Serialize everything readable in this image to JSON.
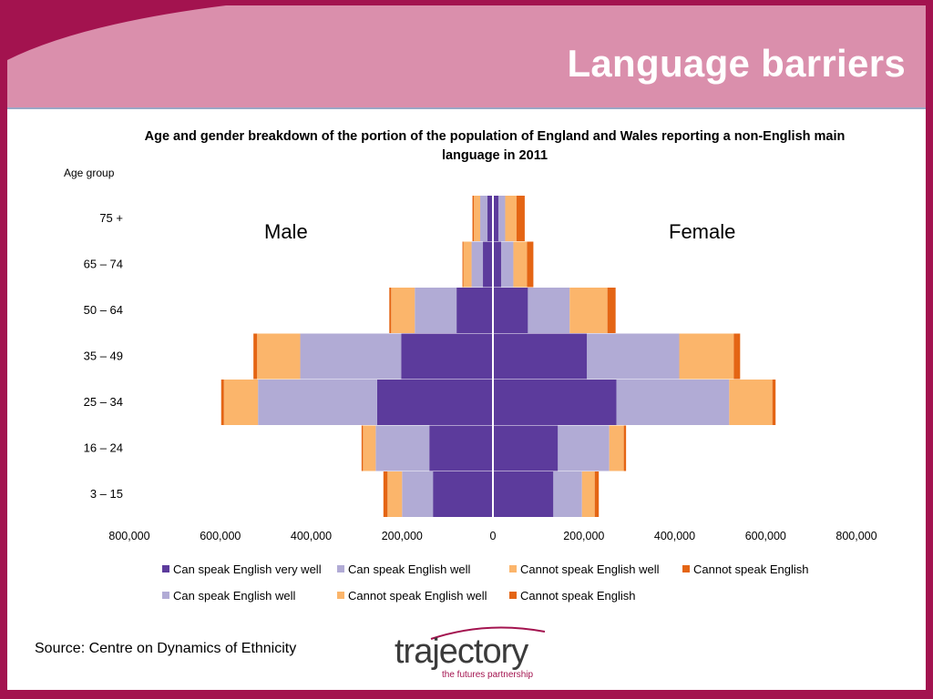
{
  "slide": {
    "title": "Language barriers",
    "source": "Source: Centre on Dynamics of Ethnicity"
  },
  "logo": {
    "word": "trajectory",
    "tagline": "the futures partnership"
  },
  "labels": {
    "male": "Male",
    "female": "Female"
  },
  "colors": {
    "background": "#a3134f",
    "header": "#da8fac",
    "very_well": "#5c3b9c",
    "well": "#b1abd5",
    "not_well": "#fbb56b",
    "not_at_all": "#e46514"
  },
  "chart_data": {
    "type": "bar",
    "orientation": "horizontal",
    "subtype": "population-pyramid",
    "title": "Age and gender breakdown of the portion of the population of England and Wales reporting a non-English main language in 2011",
    "ylabel": "Age group",
    "xlim": [
      -800000,
      800000
    ],
    "categories": [
      "3 – 15",
      "16 – 24",
      "25 – 34",
      "35 – 49",
      "50 – 64",
      "65 – 74",
      "75 +"
    ],
    "x_ticks": [
      -800000,
      -600000,
      -400000,
      -200000,
      0,
      200000,
      400000,
      600000,
      800000
    ],
    "x_tick_labels": [
      "800,000",
      "600,000",
      "400,000",
      "200,000",
      "0",
      "200,000",
      "400,000",
      "600,000",
      "800,000"
    ],
    "series": [
      {
        "name": "Can speak English very well",
        "side": "male",
        "color": "#5c3b9c",
        "values": [
          132000,
          140000,
          255000,
          202000,
          80000,
          22000,
          12000
        ]
      },
      {
        "name": "Can speak English well",
        "side": "male",
        "color": "#b1abd5",
        "values": [
          68000,
          118000,
          262000,
          222000,
          92000,
          25000,
          16000
        ]
      },
      {
        "name": "Cannot speak English well",
        "side": "male",
        "color": "#fbb56b",
        "values": [
          32000,
          28000,
          75000,
          95000,
          52000,
          18000,
          14000
        ]
      },
      {
        "name": "Cannot speak English",
        "side": "male",
        "color": "#e46514",
        "values": [
          9000,
          3000,
          6000,
          8000,
          4000,
          2000,
          3000
        ]
      },
      {
        "name": "Can speak English very well",
        "side": "female",
        "color": "#5c3b9c",
        "values": [
          133000,
          143000,
          272000,
          207000,
          77000,
          18000,
          12000
        ]
      },
      {
        "name": "Can speak English well",
        "side": "female",
        "color": "#b1abd5",
        "values": [
          63000,
          113000,
          248000,
          203000,
          92000,
          27000,
          15000
        ]
      },
      {
        "name": "Cannot speak English well",
        "side": "female",
        "color": "#fbb56b",
        "values": [
          28000,
          32000,
          95000,
          120000,
          83000,
          30000,
          25000
        ]
      },
      {
        "name": "Cannot speak English",
        "side": "female",
        "color": "#e46514",
        "values": [
          9000,
          5000,
          7000,
          14000,
          18000,
          14000,
          18000
        ]
      }
    ],
    "legend": {
      "row1": [
        "Can speak English very well",
        "Can speak English well",
        "Cannot speak English well",
        "Cannot speak English"
      ],
      "row2": [
        "Can speak English well",
        "Cannot speak English well",
        "Cannot speak English"
      ]
    }
  }
}
